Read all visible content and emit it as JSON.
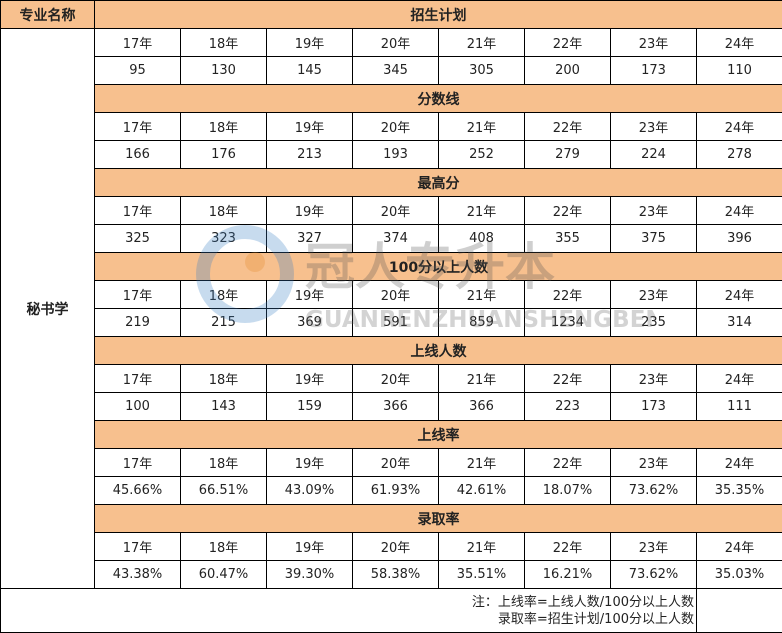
{
  "header": {
    "major_label": "专业名称"
  },
  "major": "秘书学",
  "years": [
    "17年",
    "18年",
    "19年",
    "20年",
    "21年",
    "22年",
    "23年",
    "24年"
  ],
  "sections": [
    {
      "title": "招生计划",
      "values": [
        "95",
        "130",
        "145",
        "345",
        "305",
        "200",
        "173",
        "110"
      ]
    },
    {
      "title": "分数线",
      "values": [
        "166",
        "176",
        "213",
        "193",
        "252",
        "279",
        "224",
        "278"
      ]
    },
    {
      "title": "最高分",
      "values": [
        "325",
        "323",
        "327",
        "374",
        "408",
        "355",
        "375",
        "396"
      ]
    },
    {
      "title": "100分以上人数",
      "values": [
        "219",
        "215",
        "369",
        "591",
        "859",
        "1234",
        "235",
        "314"
      ]
    },
    {
      "title": "上线人数",
      "values": [
        "100",
        "143",
        "159",
        "366",
        "366",
        "223",
        "173",
        "111"
      ]
    },
    {
      "title": "上线率",
      "values": [
        "45.66%",
        "66.51%",
        "43.09%",
        "61.93%",
        "42.61%",
        "18.07%",
        "73.62%",
        "35.35%"
      ]
    },
    {
      "title": "录取率",
      "values": [
        "43.38%",
        "60.47%",
        "39.30%",
        "58.38%",
        "35.51%",
        "16.21%",
        "73.62%",
        "35.03%"
      ]
    }
  ],
  "note": {
    "line1": "注：上线率=上线人数/100分以上人数",
    "line2": "录取率=招生计划/100分以上人数"
  },
  "watermark": {
    "cn": "冠人专升本",
    "en": "GUANRENZHUANSHENGBEN"
  },
  "colors": {
    "header_fill": "#f7c08e"
  }
}
